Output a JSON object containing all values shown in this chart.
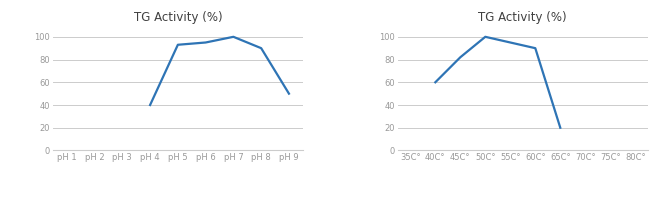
{
  "chart1": {
    "title": "TG Activity (%)",
    "x_labels": [
      "pH 1",
      "pH 2",
      "pH 3",
      "pH 4",
      "pH 5",
      "pH 6",
      "pH 7",
      "pH 8",
      "pH 9"
    ],
    "x_values": [
      1,
      2,
      3,
      4,
      5,
      6,
      7,
      8,
      9
    ],
    "x_plot": [
      4,
      5,
      6,
      7,
      8,
      9
    ],
    "y_plot": [
      40,
      93,
      95,
      100,
      90,
      50
    ],
    "ylim": [
      0,
      108
    ],
    "yticks": [
      0,
      20,
      40,
      60,
      80,
      100
    ],
    "line_color": "#2E74B5"
  },
  "chart2": {
    "title": "TG Activity (%)",
    "x_labels": [
      "35C°",
      "40C°",
      "45C°",
      "50C°",
      "55C°",
      "60C°",
      "65C°",
      "70C°",
      "75C°",
      "80C°"
    ],
    "x_values": [
      35,
      40,
      45,
      50,
      55,
      60,
      65,
      70,
      75,
      80
    ],
    "x_plot": [
      40,
      45,
      50,
      55,
      60,
      65
    ],
    "y_plot": [
      60,
      82,
      100,
      95,
      90,
      20
    ],
    "ylim": [
      0,
      108
    ],
    "yticks": [
      0,
      20,
      40,
      60,
      80,
      100
    ],
    "line_color": "#2E74B5"
  },
  "background_color": "#ffffff",
  "grid_color": "#cccccc",
  "title_fontsize": 8.5,
  "tick_fontsize": 6,
  "line_width": 1.6
}
